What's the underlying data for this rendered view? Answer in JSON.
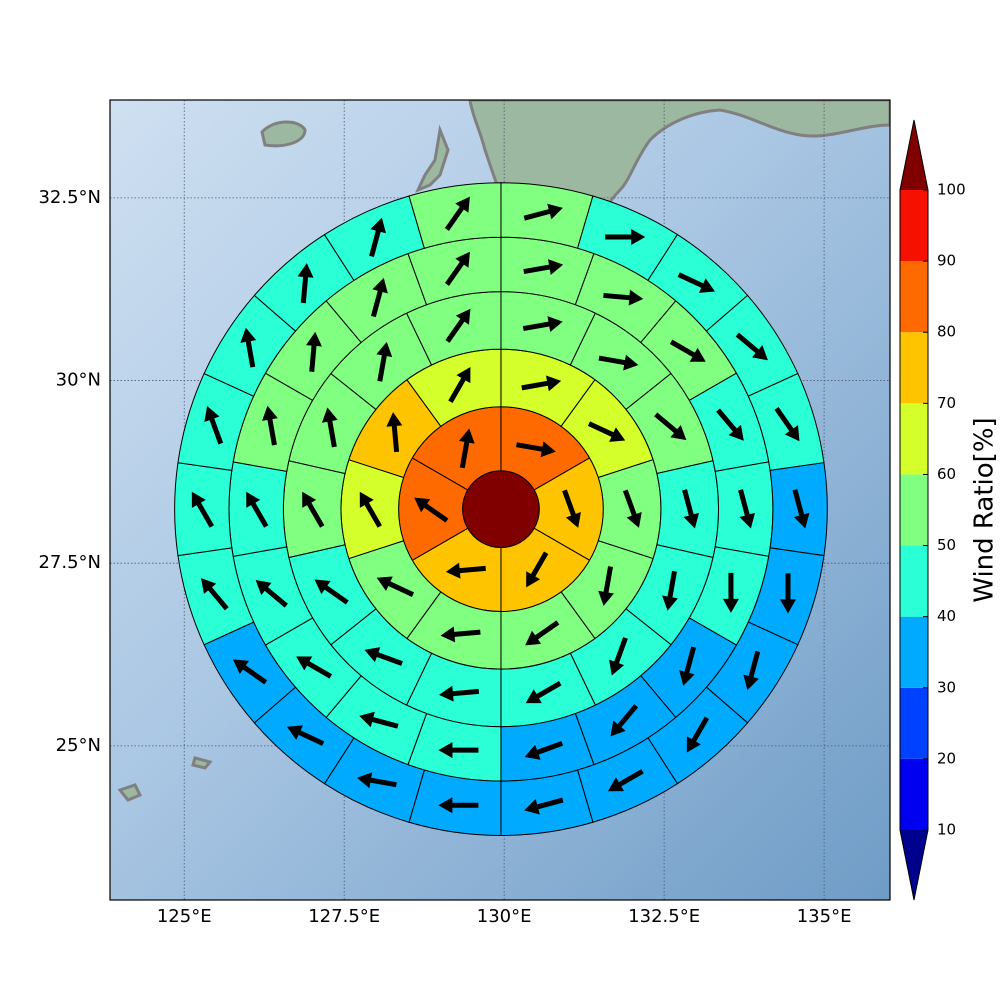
{
  "chart_data": {
    "type": "polar-sectors",
    "xlim": [
      123.84,
      136.03
    ],
    "ylim": [
      22.89,
      33.84
    ],
    "xticks": [
      {
        "value": 125,
        "label": "125°E"
      },
      {
        "value": 127.5,
        "label": "127.5°E"
      },
      {
        "value": 130,
        "label": "130°E"
      },
      {
        "value": 132.5,
        "label": "132.5°E"
      },
      {
        "value": 135,
        "label": "135°E"
      }
    ],
    "yticks": [
      {
        "value": 25,
        "label": "25°N"
      },
      {
        "value": 27.5,
        "label": "27.5°N"
      },
      {
        "value": 30,
        "label": "30°N"
      },
      {
        "value": 32.5,
        "label": "32.5°N"
      }
    ],
    "grid": true,
    "center": {
      "lon": 129.95,
      "lat": 28.24
    },
    "ring_radii": [
      0.6,
      1.6,
      2.5,
      3.4,
      4.25,
      5.1
    ],
    "rings": [
      {
        "values": [
          105
        ]
      },
      {
        "values": [
          85,
          75,
          75,
          75,
          85,
          85
        ],
        "directions": [
          100,
          160,
          210,
          265,
          305,
          10
        ]
      },
      {
        "values": [
          65,
          65,
          55,
          55,
          55,
          55,
          55,
          65,
          75,
          65
        ],
        "directions": [
          80,
          115,
          160,
          190,
          235,
          265,
          295,
          330,
          355,
          30
        ]
      },
      {
        "values": [
          55,
          55,
          55,
          45,
          45,
          45,
          45,
          45,
          45,
          45,
          55,
          55,
          55,
          55
        ],
        "directions": [
          80,
          100,
          130,
          165,
          190,
          200,
          240,
          265,
          290,
          305,
          330,
          350,
          10,
          35
        ]
      },
      {
        "values": [
          55,
          55,
          55,
          45,
          45,
          45,
          35,
          35,
          35,
          45,
          45,
          45,
          45,
          45,
          55,
          55,
          55,
          55
        ],
        "directions": [
          80,
          95,
          120,
          140,
          165,
          180,
          195,
          220,
          250,
          270,
          285,
          300,
          310,
          330,
          350,
          5,
          15,
          35
        ]
      },
      {
        "values": [
          55,
          45,
          45,
          45,
          45,
          35,
          35,
          35,
          35,
          35,
          35,
          35,
          35,
          35,
          35,
          45,
          45,
          45,
          45,
          45,
          45,
          55
        ],
        "directions": [
          75,
          90,
          115,
          130,
          145,
          165,
          180,
          195,
          210,
          240,
          255,
          270,
          280,
          295,
          305,
          320,
          330,
          340,
          350,
          5,
          15,
          35
        ]
      }
    ],
    "colorbar": {
      "label": "Wind Ratio[%]",
      "ticks": [
        10,
        20,
        30,
        40,
        50,
        60,
        70,
        80,
        90,
        100
      ],
      "colors": [
        "#00008f",
        "#0000f0",
        "#0040ff",
        "#00aaff",
        "#2affd5",
        "#80ff80",
        "#d4ff2b",
        "#ffc400",
        "#ff6a00",
        "#f51000",
        "#800000"
      ],
      "extend": "both"
    }
  }
}
